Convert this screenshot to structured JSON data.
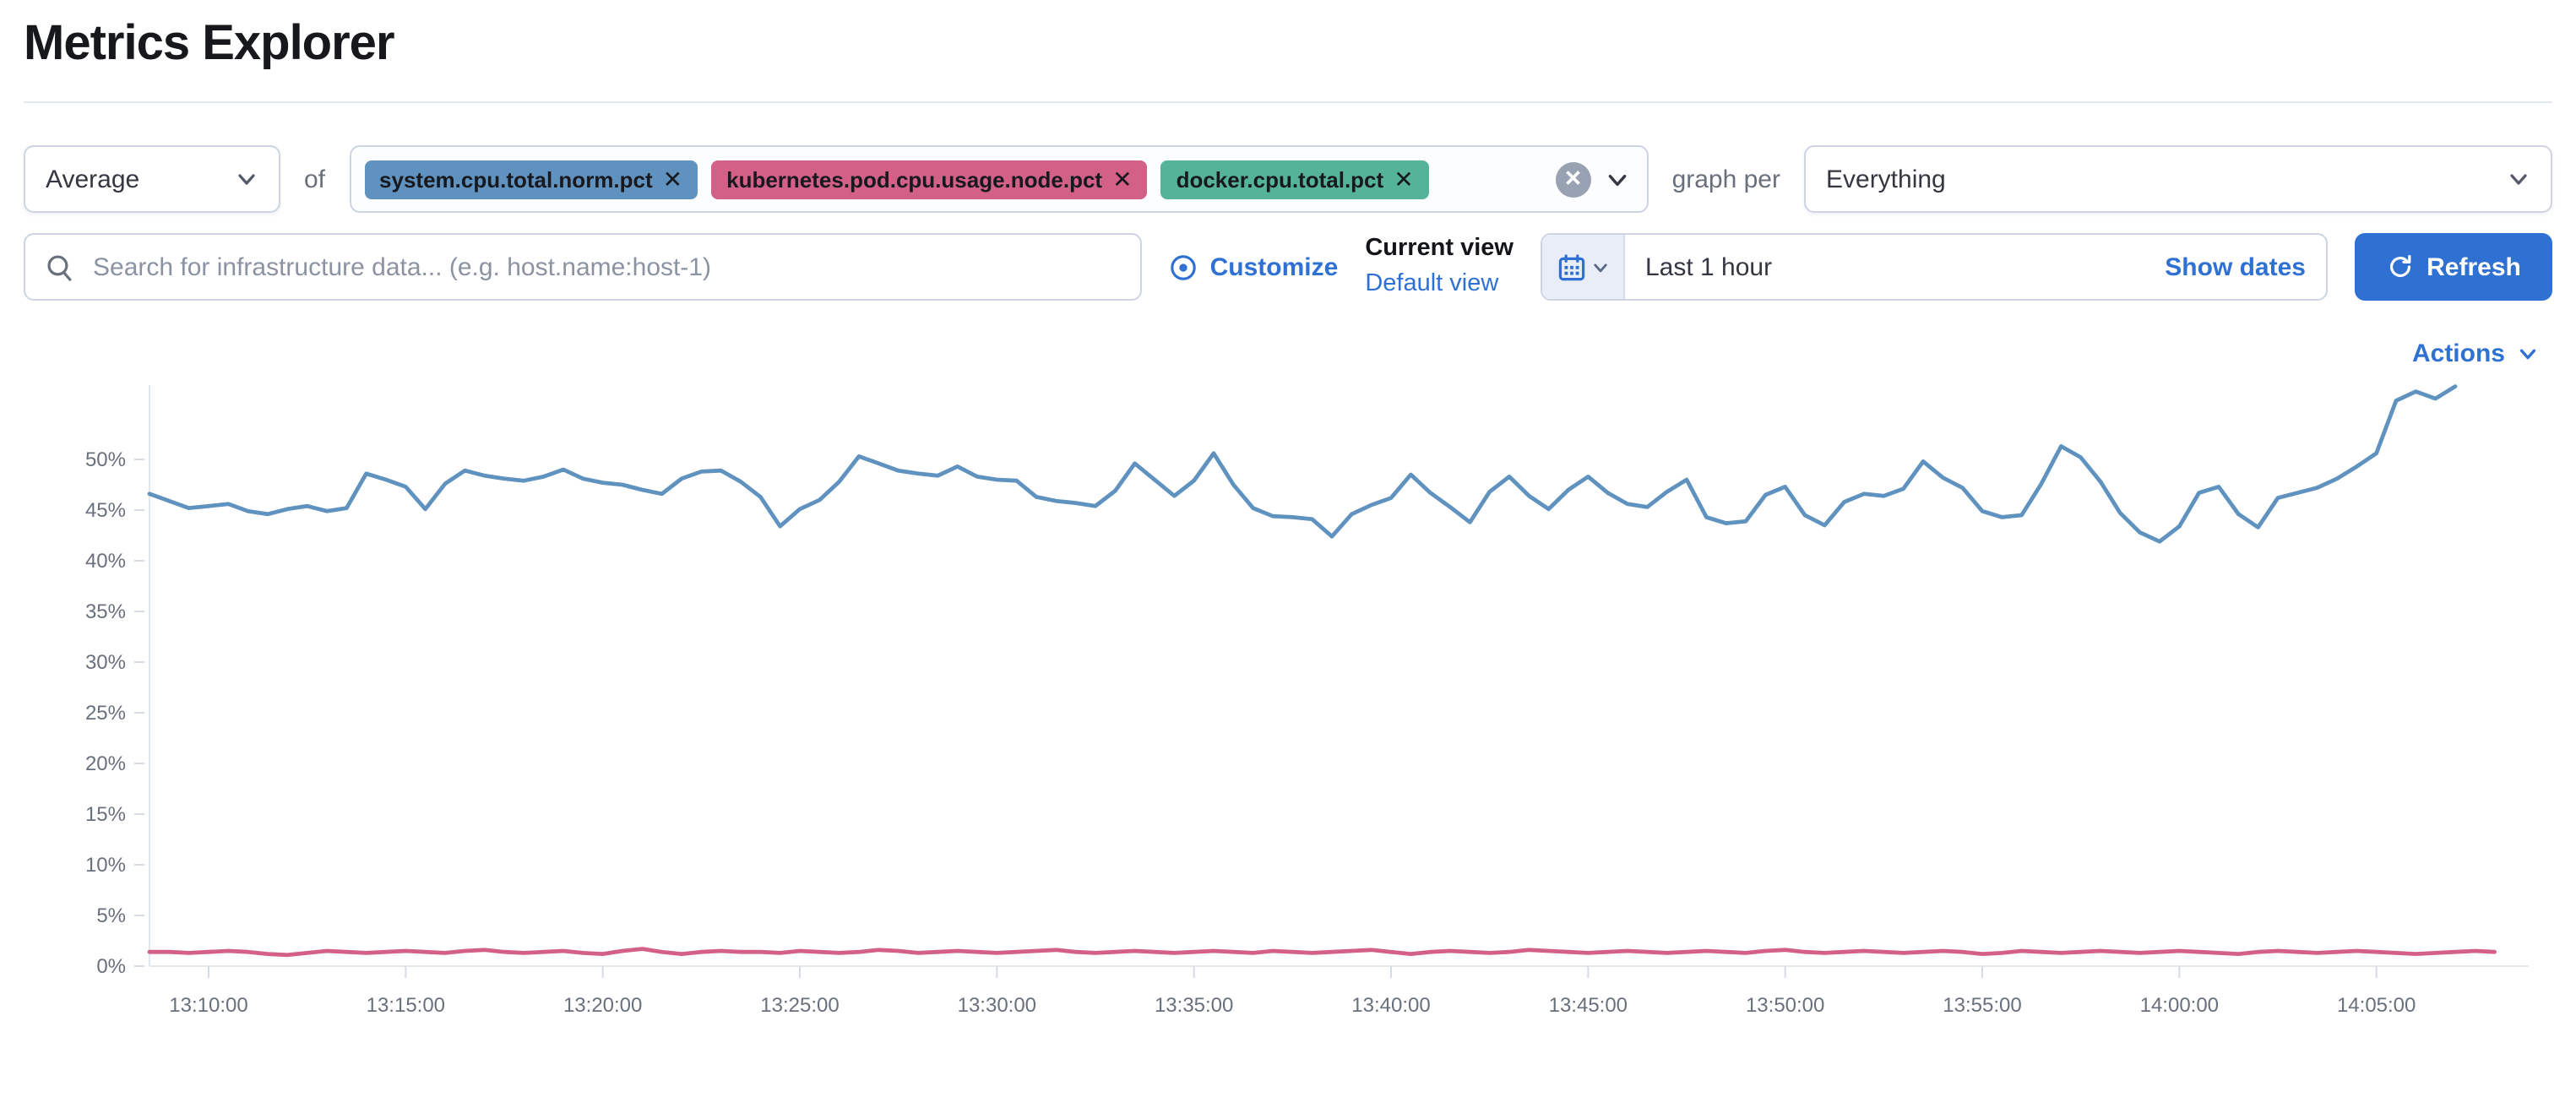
{
  "header": {
    "title": "Metrics Explorer"
  },
  "colors": {
    "accent": "#2f71d3",
    "pill_blue": "#6092C0",
    "pill_pink": "#D36086",
    "pill_green": "#54B399"
  },
  "toolbar": {
    "aggregation_value": "Average",
    "of_label": "of",
    "metrics": [
      {
        "label": "system.cpu.total.norm.pct",
        "color": "#6092C0"
      },
      {
        "label": "kubernetes.pod.cpu.usage.node.pct",
        "color": "#D36086"
      },
      {
        "label": "docker.cpu.total.pct",
        "color": "#54B399"
      }
    ],
    "clear_icon": "clear-all-metrics",
    "graph_per_label": "graph per",
    "group_by_value": "Everything"
  },
  "search": {
    "placeholder": "Search for infrastructure data... (e.g. host.name:host-1)",
    "value": ""
  },
  "view_controls": {
    "customize_label": "Customize",
    "current_view_label": "Current view",
    "view_name": "Default view"
  },
  "time_picker": {
    "range_label": "Last 1 hour",
    "show_dates_label": "Show dates",
    "refresh_label": "Refresh"
  },
  "actions_label": "Actions",
  "chart_data": {
    "type": "line",
    "title": "",
    "xlabel": "",
    "ylabel": "",
    "x_start": "13:08:30",
    "x_interval_seconds": 30,
    "x_tick_labels": [
      "13:10:00",
      "13:15:00",
      "13:20:00",
      "13:25:00",
      "13:30:00",
      "13:35:00",
      "13:40:00",
      "13:45:00",
      "13:50:00",
      "13:55:00",
      "14:00:00",
      "14:05:00"
    ],
    "x_tick_indices": [
      3,
      13,
      23,
      33,
      43,
      53,
      63,
      73,
      83,
      93,
      103,
      113
    ],
    "y_tick_labels": [
      "0%",
      "5%",
      "10%",
      "15%",
      "20%",
      "25%",
      "30%",
      "35%",
      "40%",
      "45%",
      "50%"
    ],
    "y_tick_values": [
      0,
      5,
      10,
      15,
      20,
      25,
      30,
      35,
      40,
      45,
      50
    ],
    "ylim": [
      0,
      58
    ],
    "grid": "ticks-only",
    "legend": "none",
    "series": [
      {
        "name": "system.cpu.total.norm.pct",
        "color": "#6092C0",
        "unit": "%",
        "values": [
          46.6,
          45.9,
          45.2,
          45.4,
          45.6,
          44.9,
          44.6,
          45.1,
          45.4,
          44.9,
          45.2,
          48.6,
          48.0,
          47.3,
          45.1,
          47.6,
          48.9,
          48.4,
          48.1,
          47.9,
          48.3,
          49.0,
          48.1,
          47.7,
          47.5,
          47.0,
          46.6,
          48.1,
          48.8,
          48.9,
          47.8,
          46.3,
          43.4,
          45.1,
          46.0,
          47.8,
          50.3,
          49.6,
          48.9,
          48.6,
          48.4,
          49.3,
          48.3,
          48.0,
          47.9,
          46.3,
          45.9,
          45.7,
          45.4,
          46.9,
          49.6,
          48.0,
          46.4,
          47.9,
          50.6,
          47.5,
          45.2,
          44.4,
          44.3,
          44.1,
          42.4,
          44.6,
          45.5,
          46.2,
          48.5,
          46.7,
          45.3,
          43.8,
          46.8,
          48.3,
          46.4,
          45.1,
          47.0,
          48.3,
          46.7,
          45.6,
          45.3,
          46.8,
          48.0,
          44.3,
          43.7,
          43.9,
          46.5,
          47.3,
          44.5,
          43.5,
          45.8,
          46.6,
          46.4,
          47.1,
          49.8,
          48.2,
          47.2,
          44.9,
          44.3,
          44.5,
          47.6,
          51.3,
          50.2,
          47.8,
          44.7,
          42.8,
          41.9,
          43.4,
          46.7,
          47.3,
          44.6,
          43.3,
          46.2,
          46.7,
          47.2,
          48.1,
          49.3,
          50.6,
          55.8,
          56.7,
          56.0,
          57.2
        ]
      },
      {
        "name": "kubernetes.pod.cpu.usage.node.pct",
        "color": "#D36086",
        "unit": "%",
        "values": [
          1.4,
          1.4,
          1.3,
          1.4,
          1.5,
          1.4,
          1.2,
          1.1,
          1.3,
          1.5,
          1.4,
          1.3,
          1.4,
          1.5,
          1.4,
          1.3,
          1.5,
          1.6,
          1.4,
          1.3,
          1.4,
          1.5,
          1.3,
          1.2,
          1.5,
          1.7,
          1.4,
          1.2,
          1.4,
          1.5,
          1.4,
          1.4,
          1.3,
          1.5,
          1.4,
          1.3,
          1.4,
          1.6,
          1.5,
          1.3,
          1.4,
          1.5,
          1.4,
          1.3,
          1.4,
          1.5,
          1.6,
          1.4,
          1.3,
          1.4,
          1.5,
          1.4,
          1.3,
          1.4,
          1.5,
          1.4,
          1.3,
          1.5,
          1.4,
          1.3,
          1.4,
          1.5,
          1.6,
          1.4,
          1.2,
          1.4,
          1.5,
          1.4,
          1.3,
          1.4,
          1.6,
          1.5,
          1.4,
          1.3,
          1.4,
          1.5,
          1.4,
          1.3,
          1.4,
          1.5,
          1.4,
          1.3,
          1.5,
          1.6,
          1.4,
          1.3,
          1.4,
          1.5,
          1.4,
          1.3,
          1.4,
          1.5,
          1.4,
          1.2,
          1.3,
          1.5,
          1.4,
          1.3,
          1.4,
          1.5,
          1.4,
          1.3,
          1.4,
          1.5,
          1.4,
          1.3,
          1.2,
          1.4,
          1.5,
          1.4,
          1.3,
          1.4,
          1.5,
          1.4,
          1.3,
          1.2,
          1.3,
          1.4,
          1.5,
          1.4
        ]
      }
    ]
  }
}
